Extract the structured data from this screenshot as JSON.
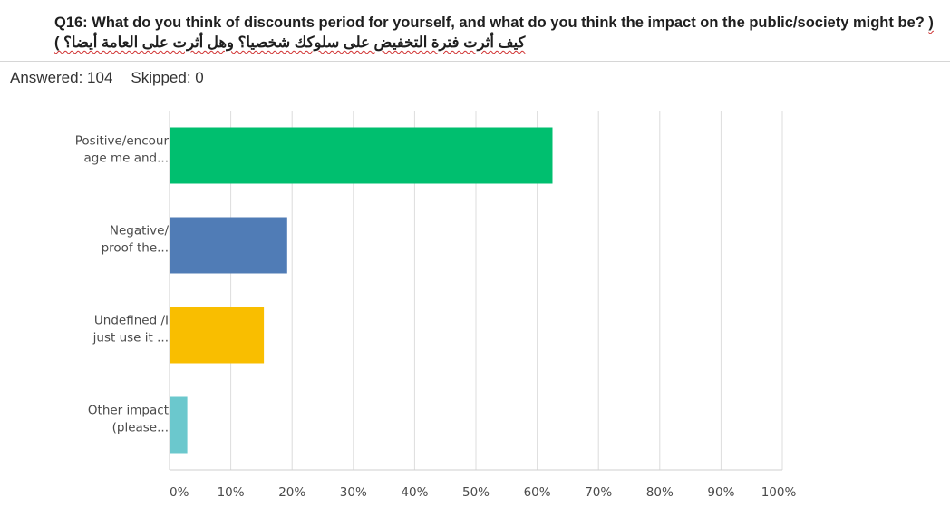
{
  "question": {
    "title_en": "Q16: What do you think of discounts period for yourself, and what do you think the impact on the public/society might be?",
    "title_ar": "( كيف أثرت فترة التخفيض على سلوكك شخصيا؟ وهل أثرت على العامة أيضا؟ )"
  },
  "stats": {
    "answered": "Answered: 104",
    "skipped": "Skipped: 0"
  },
  "chart_data": {
    "type": "bar",
    "orientation": "horizontal",
    "categories": [
      [
        "Positive/encour",
        "age me and..."
      ],
      [
        "Negative/",
        "proof the..."
      ],
      [
        "Undefined /I",
        "just use it ..."
      ],
      [
        "Other impact",
        "(please..."
      ]
    ],
    "values": [
      62.5,
      19.2,
      15.4,
      2.9
    ],
    "colors": [
      "#00bf6f",
      "#507cb6",
      "#f9be00",
      "#6bc8cd"
    ],
    "xlim": [
      0,
      100
    ],
    "xticks": [
      0,
      10,
      20,
      30,
      40,
      50,
      60,
      70,
      80,
      90,
      100
    ],
    "xtick_labels": [
      "0%",
      "10%",
      "20%",
      "30%",
      "40%",
      "50%",
      "60%",
      "70%",
      "80%",
      "90%",
      "100%"
    ],
    "grid": true
  }
}
